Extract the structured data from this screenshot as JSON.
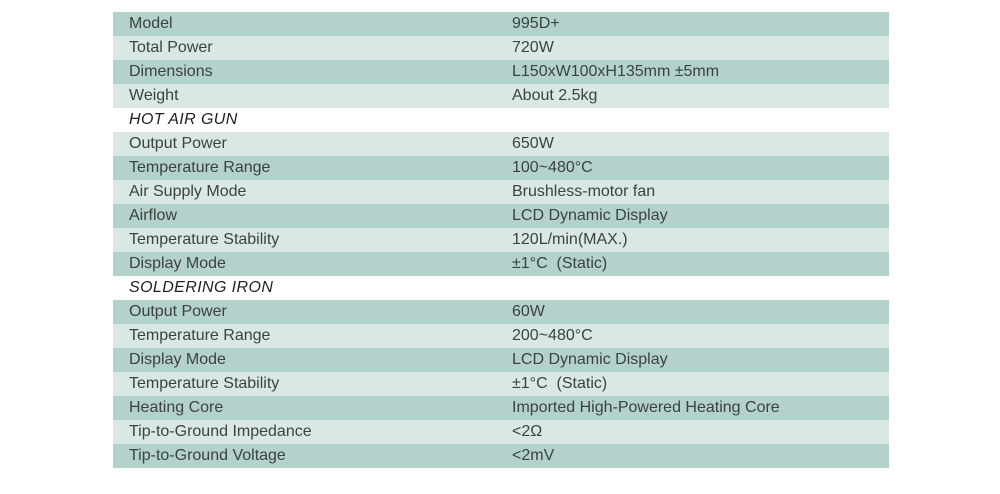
{
  "page": {
    "background": "#ffffff"
  },
  "table": {
    "colors": {
      "row_dark": "#b2d2cb",
      "row_light": "#d9e8e5",
      "section_bg": "#ffffff",
      "text": "#3c4240",
      "section_text": "#1f1f1f"
    },
    "rows": [
      {
        "type": "data",
        "shade": "dark",
        "label": "Model",
        "value": "995D+"
      },
      {
        "type": "data",
        "shade": "light",
        "label": "Total Power",
        "value": "720W"
      },
      {
        "type": "data",
        "shade": "dark",
        "label": "Dimensions",
        "value": "L150xW100xH135mm ±5mm"
      },
      {
        "type": "data",
        "shade": "light",
        "label": "Weight",
        "value": "About 2.5kg"
      },
      {
        "type": "section",
        "label": "HOT AIR GUN"
      },
      {
        "type": "data",
        "shade": "light",
        "label": "Output Power",
        "value": "650W"
      },
      {
        "type": "data",
        "shade": "dark",
        "label": "Temperature Range",
        "value": "100~480°C"
      },
      {
        "type": "data",
        "shade": "light",
        "label": "Air Supply Mode",
        "value": "Brushless-motor fan"
      },
      {
        "type": "data",
        "shade": "dark",
        "label": "Airflow",
        "value": "LCD Dynamic Display"
      },
      {
        "type": "data",
        "shade": "light",
        "label": "Temperature Stability",
        "value": "120L/min(MAX.)"
      },
      {
        "type": "data",
        "shade": "dark",
        "label": "Display Mode",
        "value": "±1°C  (Static)"
      },
      {
        "type": "section",
        "label": "SOLDERING IRON"
      },
      {
        "type": "data",
        "shade": "dark",
        "label": "Output Power",
        "value": "60W"
      },
      {
        "type": "data",
        "shade": "light",
        "label": "Temperature Range",
        "value": "200~480°C"
      },
      {
        "type": "data",
        "shade": "dark",
        "label": "Display Mode",
        "value": "LCD Dynamic Display"
      },
      {
        "type": "data",
        "shade": "light",
        "label": "Temperature Stability",
        "value": "±1°C  (Static)"
      },
      {
        "type": "data",
        "shade": "dark",
        "label": "Heating Core",
        "value": "Imported High-Powered Heating Core"
      },
      {
        "type": "data",
        "shade": "light",
        "label": "Tip-to-Ground Impedance",
        "value": "<2Ω"
      },
      {
        "type": "data",
        "shade": "dark",
        "label": "Tip-to-Ground Voltage",
        "value": "<2mV"
      }
    ]
  }
}
